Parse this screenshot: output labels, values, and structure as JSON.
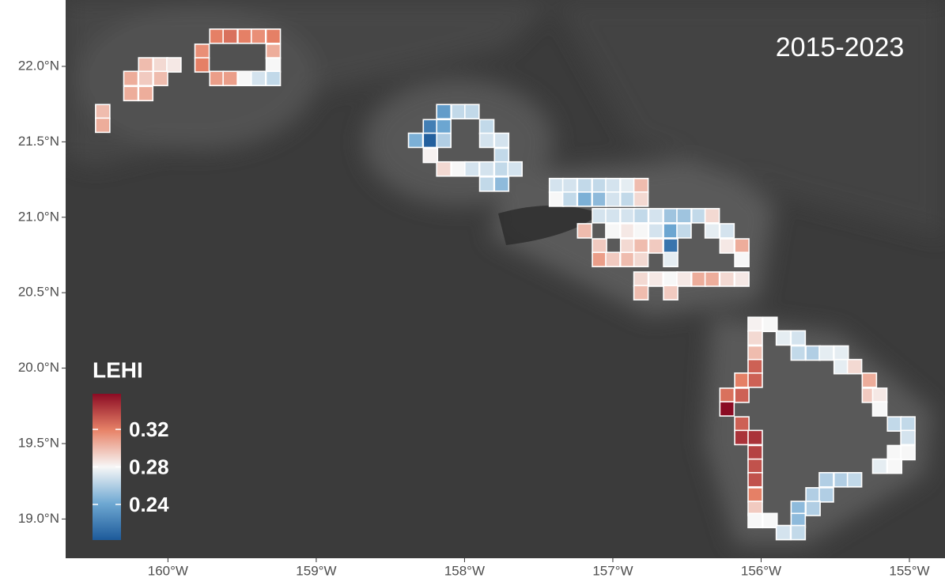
{
  "chart_data": {
    "type": "tile",
    "title": "2015-2023",
    "legend_title": "LEHI",
    "clim": [
      0.202,
      0.358
    ],
    "colorscale": [
      "#1d5a9a",
      "#6ea8d2",
      "#f7f7f7",
      "#e78368",
      "#8b0b23"
    ],
    "colorbar_ticks": [
      0.24,
      0.28,
      0.32
    ],
    "xlim": [
      -160.69,
      -154.76
    ],
    "ylim": [
      18.74,
      22.44
    ],
    "xticks": [
      {
        "value": -160,
        "label": "160°W"
      },
      {
        "value": -159,
        "label": "159°W"
      },
      {
        "value": -158,
        "label": "158°W"
      },
      {
        "value": -157,
        "label": "157°W"
      },
      {
        "value": -156,
        "label": "156°W"
      },
      {
        "value": -155,
        "label": "155°W"
      }
    ],
    "yticks": [
      {
        "value": 19.0,
        "label": "19.0°N"
      },
      {
        "value": 19.5,
        "label": "19.5°N"
      },
      {
        "value": 20.0,
        "label": "20.0°N"
      },
      {
        "value": 20.5,
        "label": "20.5°N"
      },
      {
        "value": 21.0,
        "label": "21.0°N"
      },
      {
        "value": 21.5,
        "label": "21.5°N"
      },
      {
        "value": 22.0,
        "label": "22.0°N"
      }
    ],
    "x": [
      -159.67,
      -159.58,
      -159.48,
      -159.39,
      -159.29,
      -159.77,
      -159.29,
      -160.15,
      -160.05,
      -159.96,
      -159.77,
      -159.29,
      -160.25,
      -160.15,
      -160.05,
      -159.67,
      -159.58,
      -159.48,
      -159.39,
      -159.29,
      -160.25,
      -160.15,
      -160.44,
      -160.44,
      -158.14,
      -158.04,
      -157.95,
      -158.23,
      -158.14,
      -157.85,
      -158.33,
      -158.23,
      -158.14,
      -157.85,
      -157.75,
      -158.23,
      -157.75,
      -158.14,
      -158.04,
      -157.95,
      -157.85,
      -157.75,
      -157.66,
      -157.85,
      -157.75,
      -157.38,
      -157.29,
      -157.19,
      -157.09,
      -157.0,
      -156.9,
      -156.81,
      -157.38,
      -157.29,
      -157.19,
      -157.09,
      -157.0,
      -156.9,
      -156.81,
      -157.09,
      -157.0,
      -156.9,
      -156.81,
      -156.71,
      -156.61,
      -156.52,
      -156.42,
      -156.33,
      -157.19,
      -157.0,
      -156.9,
      -156.81,
      -156.71,
      -156.61,
      -156.52,
      -156.33,
      -156.23,
      -157.09,
      -156.9,
      -156.81,
      -156.71,
      -156.61,
      -156.23,
      -156.13,
      -157.09,
      -157.0,
      -156.9,
      -156.81,
      -156.61,
      -156.13,
      -156.81,
      -156.71,
      -156.61,
      -156.52,
      -156.42,
      -156.33,
      -156.23,
      -156.13,
      -156.81,
      -156.61,
      -156.04,
      -155.94,
      -156.04,
      -155.85,
      -155.75,
      -156.04,
      -155.75,
      -155.65,
      -155.56,
      -155.46,
      -156.04,
      -155.46,
      -155.37,
      -156.13,
      -156.04,
      -155.27,
      -156.23,
      -156.13,
      -155.27,
      -155.2,
      -156.23,
      -155.2,
      -156.13,
      -155.1,
      -155.01,
      -156.13,
      -156.04,
      -155.01,
      -156.04,
      -155.1,
      -155.01,
      -156.04,
      -155.2,
      -155.1,
      -156.04,
      -155.56,
      -155.46,
      -155.37,
      -156.04,
      -155.65,
      -155.56,
      -156.04,
      -155.75,
      -155.65,
      -156.04,
      -155.94,
      -155.75,
      -155.85,
      -155.75
    ],
    "y": [
      22.2,
      22.2,
      22.2,
      22.2,
      22.2,
      22.1,
      22.1,
      22.01,
      22.01,
      22.01,
      22.01,
      22.01,
      21.92,
      21.92,
      21.92,
      21.92,
      21.92,
      21.92,
      21.92,
      21.92,
      21.82,
      21.82,
      21.7,
      21.61,
      21.7,
      21.7,
      21.7,
      21.6,
      21.6,
      21.6,
      21.51,
      21.51,
      21.51,
      21.51,
      21.51,
      21.41,
      21.41,
      21.32,
      21.32,
      21.32,
      21.32,
      21.32,
      21.32,
      21.22,
      21.22,
      21.21,
      21.21,
      21.21,
      21.21,
      21.21,
      21.21,
      21.21,
      21.12,
      21.12,
      21.12,
      21.12,
      21.12,
      21.12,
      21.12,
      21.01,
      21.01,
      21.01,
      21.01,
      21.01,
      21.01,
      21.01,
      21.01,
      21.01,
      20.91,
      20.91,
      20.91,
      20.91,
      20.91,
      20.91,
      20.91,
      20.91,
      20.91,
      20.81,
      20.81,
      20.81,
      20.81,
      20.81,
      20.81,
      20.81,
      20.72,
      20.72,
      20.72,
      20.72,
      20.72,
      20.72,
      20.59,
      20.59,
      20.59,
      20.59,
      20.59,
      20.59,
      20.59,
      20.59,
      20.5,
      20.5,
      20.29,
      20.29,
      20.2,
      20.2,
      20.2,
      20.1,
      20.1,
      20.1,
      20.1,
      20.1,
      20.01,
      20.01,
      20.01,
      19.92,
      19.92,
      19.92,
      19.82,
      19.82,
      19.82,
      19.82,
      19.73,
      19.73,
      19.63,
      19.63,
      19.63,
      19.54,
      19.54,
      19.54,
      19.44,
      19.44,
      19.44,
      19.35,
      19.35,
      19.35,
      19.26,
      19.26,
      19.26,
      19.26,
      19.16,
      19.16,
      19.16,
      19.07,
      19.07,
      19.07,
      18.99,
      18.99,
      18.99,
      18.91,
      18.91
    ],
    "values": [
      0.32,
      0.325,
      0.32,
      0.315,
      0.32,
      0.315,
      0.305,
      0.3,
      0.29,
      0.285,
      0.32,
      0.28,
      0.305,
      0.295,
      0.3,
      0.31,
      0.31,
      0.28,
      0.27,
      0.265,
      0.305,
      0.305,
      0.3,
      0.305,
      0.235,
      0.265,
      0.265,
      0.22,
      0.24,
      0.265,
      0.245,
      0.205,
      0.26,
      0.27,
      0.27,
      0.282,
      0.265,
      0.29,
      0.28,
      0.27,
      0.27,
      0.265,
      0.27,
      0.265,
      0.25,
      0.27,
      0.27,
      0.265,
      0.265,
      0.27,
      0.275,
      0.3,
      0.28,
      0.265,
      0.245,
      0.25,
      0.27,
      0.265,
      0.29,
      0.27,
      0.27,
      0.27,
      0.265,
      0.27,
      0.255,
      0.255,
      0.265,
      0.29,
      0.3,
      0.28,
      0.285,
      0.28,
      0.27,
      0.24,
      0.265,
      0.275,
      0.27,
      0.295,
      0.29,
      0.3,
      0.295,
      0.215,
      0.285,
      0.305,
      0.31,
      0.295,
      0.3,
      0.29,
      0.275,
      0.28,
      0.29,
      0.285,
      0.28,
      0.285,
      0.305,
      0.305,
      0.29,
      0.285,
      0.3,
      0.295,
      0.282,
      0.28,
      0.29,
      0.275,
      0.27,
      0.3,
      0.265,
      0.26,
      0.275,
      0.275,
      0.33,
      0.275,
      0.29,
      0.32,
      0.33,
      0.305,
      0.325,
      0.33,
      0.295,
      0.285,
      0.358,
      0.28,
      0.33,
      0.265,
      0.265,
      0.345,
      0.345,
      0.27,
      0.34,
      0.28,
      0.28,
      0.335,
      0.275,
      0.28,
      0.335,
      0.26,
      0.26,
      0.265,
      0.32,
      0.26,
      0.26,
      0.295,
      0.25,
      0.26,
      0.28,
      0.28,
      0.25,
      0.27,
      0.265
    ]
  }
}
